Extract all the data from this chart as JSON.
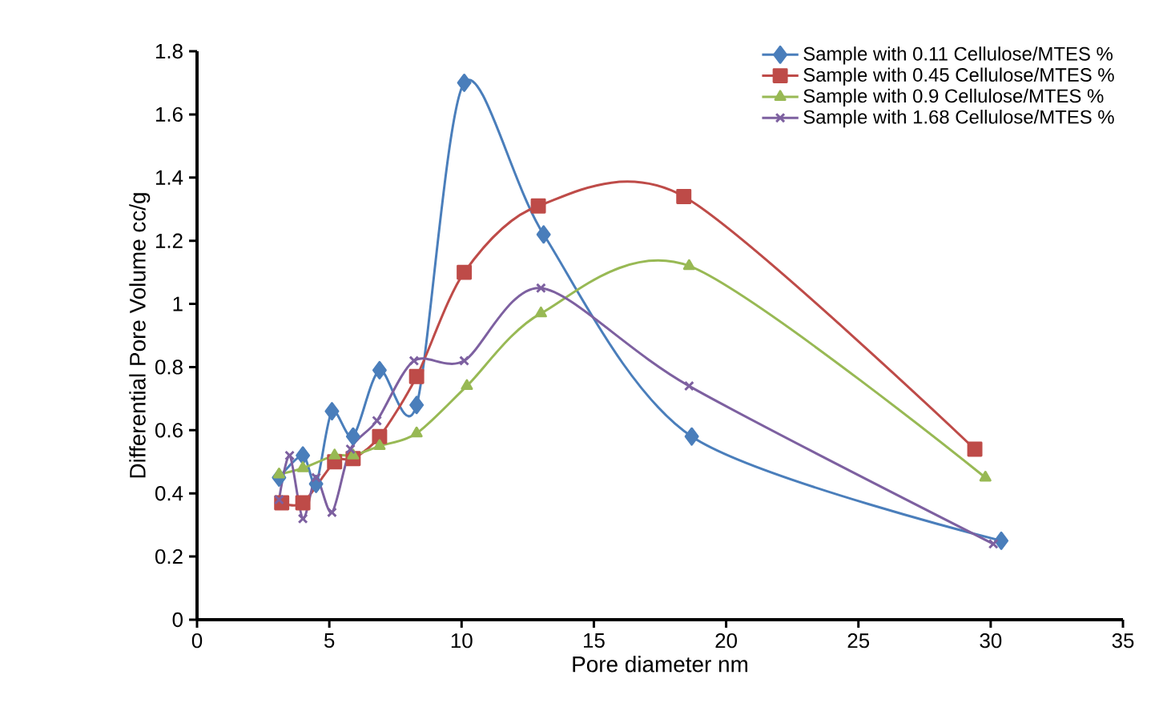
{
  "chart_data": {
    "type": "line",
    "xlabel": "Pore diameter nm",
    "ylabel": "Differential Pore Volume cc/g",
    "xlim": [
      0,
      35
    ],
    "xticks": [
      0,
      5,
      10,
      15,
      20,
      25,
      30,
      35
    ],
    "ylim": [
      0,
      1.8
    ],
    "yticks": [
      0,
      0.2,
      0.4,
      0.6,
      0.8,
      1,
      1.2,
      1.4,
      1.6,
      1.8
    ],
    "grid": false,
    "legend": "top right",
    "series": [
      {
        "name": "Sample with 0.11 Cellulose/MTES %",
        "color": "#4a7ebb",
        "marker": "diamond",
        "x": [
          3.1,
          4.0,
          4.5,
          5.1,
          5.9,
          6.9,
          8.3,
          10.1,
          13.1,
          18.7,
          30.4
        ],
        "values": [
          0.45,
          0.52,
          0.43,
          0.66,
          0.58,
          0.79,
          0.68,
          1.7,
          1.22,
          0.58,
          0.25
        ]
      },
      {
        "name": "Sample with 0.45 Cellulose/MTES %",
        "color": "#be4b48",
        "marker": "square",
        "x": [
          3.2,
          4.0,
          5.2,
          5.9,
          6.9,
          8.3,
          10.1,
          12.9,
          18.4,
          29.4
        ],
        "values": [
          0.37,
          0.37,
          0.5,
          0.51,
          0.58,
          0.77,
          1.1,
          1.31,
          1.34,
          0.54
        ]
      },
      {
        "name": "Sample with 0.9 Cellulose/MTES %",
        "color": "#98b954",
        "marker": "triangle",
        "x": [
          3.1,
          4.0,
          5.2,
          5.9,
          6.9,
          8.3,
          10.2,
          13.0,
          18.6,
          29.8
        ],
        "values": [
          0.46,
          0.48,
          0.52,
          0.52,
          0.55,
          0.59,
          0.74,
          0.97,
          1.12,
          0.45
        ]
      },
      {
        "name": "Sample with 1.68 Cellulose/MTES %",
        "color": "#7d60a0",
        "marker": "cross",
        "x": [
          3.1,
          3.5,
          4.0,
          4.5,
          5.1,
          5.8,
          6.8,
          8.2,
          10.1,
          13.0,
          18.6,
          30.1
        ],
        "values": [
          0.38,
          0.52,
          0.32,
          0.45,
          0.34,
          0.54,
          0.63,
          0.82,
          0.82,
          1.05,
          0.74,
          0.24
        ]
      }
    ]
  }
}
